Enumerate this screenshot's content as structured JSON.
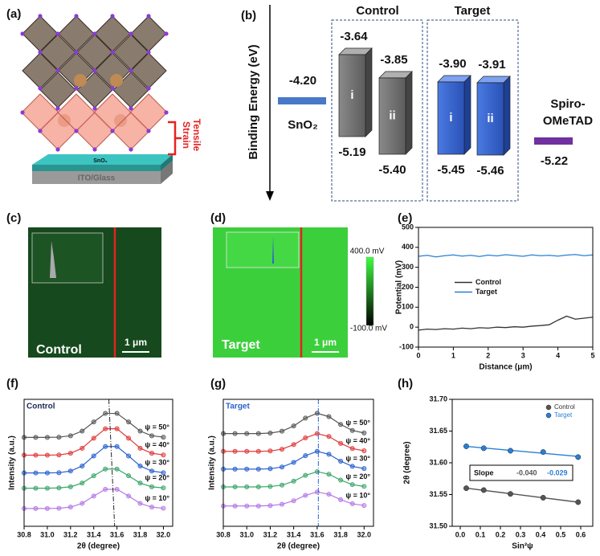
{
  "panel_a": {
    "label": "(a)",
    "annotation": [
      "Tensile",
      "Strain"
    ],
    "layers": [
      "SnO₂",
      "ITO/Glass"
    ]
  },
  "panel_b": {
    "label": "(b)",
    "axis_label": "Binding Energy (eV)",
    "groups": [
      {
        "title": "Control",
        "boxes": [
          {
            "name": "i",
            "top": "-3.64",
            "bottom": "-5.19"
          },
          {
            "name": "ii",
            "top": "-3.85",
            "bottom": "-5.40"
          }
        ]
      },
      {
        "title": "Target",
        "boxes": [
          {
            "name": "i",
            "top": "-3.90",
            "bottom": "-5.45"
          },
          {
            "name": "ii",
            "top": "-3.91",
            "bottom": "-5.46"
          }
        ]
      }
    ],
    "sno2": {
      "name": "SnO₂",
      "level": "-4.20"
    },
    "spiro": {
      "name": [
        "Spiro-",
        "OMeTAD"
      ],
      "level": "-5.22"
    }
  },
  "panel_c": {
    "label": "(c)",
    "name": "Control",
    "scale_bar": "1 μm"
  },
  "panel_d": {
    "label": "(d)",
    "name": "Target",
    "scale_bar": "1 μm",
    "colorbar": [
      "400.0 mV",
      "-100.0 mV"
    ]
  },
  "chart_data": [
    {
      "type": "line",
      "panel_label": "(e)",
      "xlabel": "Distance (μm)",
      "ylabel": "Potential (mV)",
      "x": [
        0,
        0.25,
        0.5,
        0.75,
        1,
        1.25,
        1.5,
        1.75,
        2,
        2.25,
        2.5,
        2.75,
        3,
        3.25,
        3.5,
        3.75,
        4,
        4.25,
        4.5,
        4.75,
        5
      ],
      "series": [
        {
          "name": "Control",
          "color": "#333333",
          "values": [
            -15,
            -10,
            -12,
            -8,
            -10,
            -5,
            -8,
            -3,
            -5,
            0,
            -2,
            2,
            0,
            5,
            8,
            12,
            35,
            55,
            40,
            45,
            50
          ]
        },
        {
          "name": "Target",
          "color": "#2a7fd4",
          "values": [
            355,
            360,
            352,
            358,
            362,
            356,
            360,
            354,
            361,
            357,
            363,
            359,
            355,
            362,
            358,
            360,
            356,
            361,
            364,
            358,
            362
          ]
        }
      ],
      "xlim": [
        0,
        5
      ],
      "ylim": [
        -100,
        500
      ],
      "xticks": [
        0,
        1,
        2,
        3,
        4,
        5
      ],
      "yticks": [
        -100,
        0,
        100,
        200,
        300,
        400,
        500
      ],
      "legend": "center-left"
    },
    {
      "type": "offset-line",
      "panel_label": "(f)",
      "label": "Control",
      "label_color": "#1f2a55",
      "xlabel": "2θ (degree)",
      "ylabel": "Intensity (a.u.)",
      "x": [
        30.8,
        30.9,
        31.0,
        31.1,
        31.2,
        31.3,
        31.4,
        31.5,
        31.6,
        31.7,
        31.8,
        31.9,
        32.0
      ],
      "series": [
        {
          "name": "ψ = 50°",
          "color": "#555555",
          "values": [
            70,
            70,
            70,
            70.2,
            71.3,
            75,
            82.2,
            88.9,
            88.9,
            82.2,
            75,
            71.3,
            70.2
          ]
        },
        {
          "name": "ψ = 40°",
          "color": "#e03a3a",
          "values": [
            56,
            56,
            56,
            56.2,
            57.5,
            61.5,
            69.4,
            76.8,
            76.8,
            69.4,
            61.5,
            57.5,
            56.2
          ]
        },
        {
          "name": "ψ = 30°",
          "color": "#2a62d0",
          "values": [
            42,
            42,
            42,
            42.2,
            43.5,
            47.5,
            55.4,
            62.8,
            62.8,
            55.4,
            47.5,
            43.5,
            42.2
          ]
        },
        {
          "name": "ψ = 20°",
          "color": "#3aa56a",
          "values": [
            30,
            30,
            30,
            30.2,
            31.1,
            34,
            39.8,
            45.1,
            45.1,
            39.8,
            34,
            31.1,
            30.2
          ]
        },
        {
          "name": "ψ = 10°",
          "color": "#b478e6",
          "values": [
            14,
            14,
            14,
            14.2,
            15.1,
            18,
            23.8,
            29.1,
            29.1,
            23.8,
            18,
            15.1,
            14.2
          ]
        }
      ],
      "reference_x": [
        31.53,
        31.58
      ],
      "reference_color": "#222222",
      "xlim": [
        30.8,
        32.08
      ],
      "ylim": [
        0,
        100
      ],
      "xticks": [
        30.8,
        {
          "value": 31,
          "label": "31.0"
        },
        31.2,
        31.4,
        31.6,
        31.8,
        {
          "value": 32,
          "label": "32.0"
        }
      ]
    },
    {
      "type": "offset-line",
      "panel_label": "(g)",
      "label": "Target",
      "label_color": "#2a62d0",
      "xlabel": "2θ (degree)",
      "ylabel": "Intensity (a.u.)",
      "x": [
        30.8,
        30.9,
        31.0,
        31.1,
        31.2,
        31.3,
        31.4,
        31.5,
        31.6,
        31.7,
        31.8,
        31.9,
        32.0
      ],
      "series": [
        {
          "name": "ψ = 50°",
          "color": "#555555",
          "values": [
            73,
            73,
            73,
            73,
            73.4,
            74.9,
            79,
            85.2,
            89,
            86.4,
            80.2,
            75.5,
            73.5
          ]
        },
        {
          "name": "ψ = 40°",
          "color": "#e03a3a",
          "values": [
            59,
            59,
            59,
            59,
            59.3,
            60.7,
            64.3,
            69.6,
            73,
            70.7,
            65.3,
            61.2,
            59.5
          ]
        },
        {
          "name": "ψ = 30°",
          "color": "#2a62d0",
          "values": [
            45,
            45,
            45,
            45,
            45.3,
            46.7,
            50.3,
            55.6,
            59,
            56.7,
            51.3,
            47.2,
            45.5
          ]
        },
        {
          "name": "ψ = 20°",
          "color": "#3aa56a",
          "values": [
            31,
            31,
            31,
            31,
            31.3,
            32.4,
            35.5,
            40.1,
            43,
            41,
            36.4,
            32.8,
            31.4
          ]
        },
        {
          "name": "ψ = 10°",
          "color": "#b478e6",
          "values": [
            16,
            16,
            16,
            16,
            16.3,
            17.3,
            20.1,
            24.4,
            27,
            25.2,
            21,
            17.7,
            16.4
          ]
        }
      ],
      "reference_x": [
        31.61,
        31.61
      ],
      "reference_color": "#2a62d0",
      "xlim": [
        30.8,
        32.08
      ],
      "ylim": [
        0,
        100
      ],
      "xticks": [
        30.8,
        {
          "value": 31,
          "label": "31.0"
        },
        31.2,
        31.4,
        31.6,
        31.8,
        {
          "value": 32,
          "label": "32.0"
        }
      ]
    },
    {
      "type": "scatter",
      "panel_label": "(h)",
      "xlabel": "Sin²ψ",
      "ylabel": "2θ (degree)",
      "series": [
        {
          "name": "Control",
          "color": "#555555",
          "x": [
            0.03,
            0.117,
            0.25,
            0.413,
            0.587
          ],
          "values": [
            31.56,
            31.557,
            31.551,
            31.545,
            31.538
          ]
        },
        {
          "name": "Target",
          "color": "#2a7fd4",
          "x": [
            0.03,
            0.117,
            0.25,
            0.413,
            0.587
          ],
          "values": [
            31.626,
            31.623,
            31.619,
            31.617,
            31.609
          ]
        }
      ],
      "annotation": {
        "label": "Slope",
        "values": [
          "-0.040",
          "-0.029"
        ]
      },
      "xlim": [
        -0.04,
        0.66
      ],
      "ylim": [
        31.5,
        31.7
      ],
      "xticks": [
        {
          "value": 0,
          "label": "0.0"
        },
        0.1,
        0.2,
        0.3,
        0.4,
        0.5,
        0.6
      ],
      "yticks": [
        {
          "value": 31.5,
          "label": "31.50"
        },
        31.55,
        {
          "value": 31.6,
          "label": "31.60"
        },
        31.65,
        {
          "value": 31.7,
          "label": "31.70"
        }
      ],
      "legend": "upper-right"
    }
  ]
}
